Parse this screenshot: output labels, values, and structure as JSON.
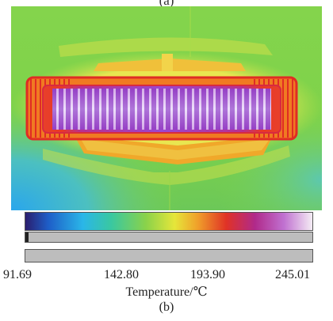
{
  "top_panel_label": "(a)",
  "thermal_image": {
    "colors": {
      "background_green": "#7ed24a",
      "cool_blue": "#2ab0e8",
      "warm_yellow": "#f6e646",
      "hot_orange": "#f07820",
      "hot_red": "#e0302a",
      "hotter_magenta": "#b030a0",
      "hottest_purple": "#8a50d8",
      "peak_white": "#f4e6ff"
    }
  },
  "colorbar": {
    "stops": [
      "#2a1e6e",
      "#1e5ec8",
      "#2ab6e8",
      "#3ac8a0",
      "#8ad24a",
      "#e6e63a",
      "#f0a02a",
      "#e03226",
      "#b02a8a",
      "#c070d0",
      "#f4ecf4"
    ],
    "ticks": [
      "91.69",
      "142.80",
      "193.90",
      "245.01"
    ],
    "range": [
      91.69,
      245.01
    ],
    "axis_title": "Temperature/℃"
  },
  "panel_label": "(b)"
}
